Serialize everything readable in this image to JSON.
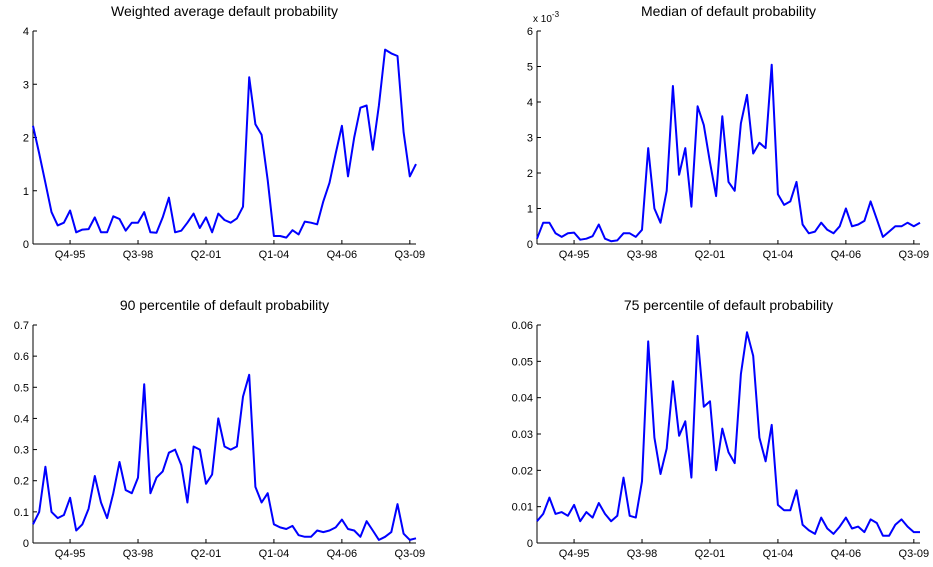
{
  "chart_data": [
    {
      "type": "line",
      "title": "Weighted average default probability",
      "xlabel": "",
      "ylabel": "",
      "ylim": [
        0,
        4
      ],
      "yticks": [
        "0",
        "1",
        "2",
        "3",
        "4"
      ],
      "y_exponent_label": "",
      "xticks": [
        {
          "label": "Q4-95",
          "index": 6
        },
        {
          "label": "Q3-98",
          "index": 17
        },
        {
          "label": "Q2-01",
          "index": 28
        },
        {
          "label": "Q1-04",
          "index": 39
        },
        {
          "label": "Q4-06",
          "index": 50
        },
        {
          "label": "Q3-09",
          "index": 61
        }
      ],
      "grid": false,
      "series": [
        {
          "color": "#0000ff",
          "values": [
            2.22,
            1.7,
            1.15,
            0.6,
            0.35,
            0.4,
            0.63,
            0.22,
            0.27,
            0.28,
            0.5,
            0.22,
            0.22,
            0.52,
            0.47,
            0.25,
            0.4,
            0.4,
            0.6,
            0.22,
            0.21,
            0.5,
            0.87,
            0.22,
            0.25,
            0.4,
            0.57,
            0.3,
            0.5,
            0.22,
            0.57,
            0.45,
            0.4,
            0.48,
            0.7,
            3.13,
            2.25,
            2.05,
            1.2,
            0.15,
            0.15,
            0.12,
            0.26,
            0.18,
            0.42,
            0.4,
            0.37,
            0.8,
            1.15,
            1.7,
            2.22,
            1.27,
            2.0,
            2.56,
            2.6,
            1.77,
            2.6,
            3.65,
            3.58,
            3.53,
            2.1,
            1.27,
            1.5
          ]
        }
      ]
    },
    {
      "type": "line",
      "title": "Median of default probability",
      "xlabel": "",
      "ylabel": "",
      "ylim": [
        0,
        6
      ],
      "yticks": [
        "0",
        "1",
        "2",
        "3",
        "4",
        "5",
        "6"
      ],
      "y_exponent_label": "x 10-3",
      "y_exponent_base": "x 10",
      "y_exponent_power": "-3",
      "xticks": [
        {
          "label": "Q4-95",
          "index": 6
        },
        {
          "label": "Q3-98",
          "index": 17
        },
        {
          "label": "Q2-01",
          "index": 28
        },
        {
          "label": "Q1-04",
          "index": 39
        },
        {
          "label": "Q4-06",
          "index": 50
        },
        {
          "label": "Q3-09",
          "index": 61
        }
      ],
      "grid": false,
      "series": [
        {
          "color": "#0000ff",
          "values": [
            0.15,
            0.6,
            0.6,
            0.3,
            0.2,
            0.3,
            0.32,
            0.12,
            0.15,
            0.22,
            0.55,
            0.15,
            0.08,
            0.1,
            0.3,
            0.3,
            0.2,
            0.4,
            2.7,
            1.0,
            0.6,
            1.5,
            4.45,
            1.95,
            2.7,
            1.05,
            3.88,
            3.35,
            2.3,
            1.35,
            3.6,
            1.75,
            1.5,
            3.4,
            4.2,
            2.55,
            2.85,
            2.7,
            5.05,
            1.4,
            1.1,
            1.2,
            1.75,
            0.55,
            0.3,
            0.35,
            0.6,
            0.4,
            0.3,
            0.5,
            1.0,
            0.5,
            0.55,
            0.65,
            1.2,
            0.7,
            0.2,
            0.35,
            0.5,
            0.5,
            0.6,
            0.5,
            0.6
          ]
        }
      ]
    },
    {
      "type": "line",
      "title": "90 percentile of default probability",
      "xlabel": "",
      "ylabel": "",
      "ylim": [
        0,
        0.7
      ],
      "yticks": [
        "0",
        "0.1",
        "0.2",
        "0.3",
        "0.4",
        "0.5",
        "0.6",
        "0.7"
      ],
      "y_exponent_label": "",
      "xticks": [
        {
          "label": "Q4-95",
          "index": 6
        },
        {
          "label": "Q3-98",
          "index": 17
        },
        {
          "label": "Q2-01",
          "index": 28
        },
        {
          "label": "Q1-04",
          "index": 39
        },
        {
          "label": "Q4-06",
          "index": 50
        },
        {
          "label": "Q3-09",
          "index": 61
        }
      ],
      "grid": false,
      "series": [
        {
          "color": "#0000ff",
          "values": [
            0.06,
            0.1,
            0.245,
            0.1,
            0.08,
            0.09,
            0.145,
            0.04,
            0.06,
            0.11,
            0.215,
            0.13,
            0.08,
            0.16,
            0.26,
            0.17,
            0.16,
            0.21,
            0.51,
            0.16,
            0.21,
            0.23,
            0.29,
            0.3,
            0.25,
            0.13,
            0.31,
            0.3,
            0.19,
            0.22,
            0.4,
            0.31,
            0.3,
            0.31,
            0.47,
            0.54,
            0.18,
            0.13,
            0.16,
            0.06,
            0.05,
            0.045,
            0.055,
            0.025,
            0.02,
            0.02,
            0.04,
            0.035,
            0.04,
            0.05,
            0.075,
            0.045,
            0.04,
            0.02,
            0.07,
            0.04,
            0.01,
            0.02,
            0.035,
            0.125,
            0.03,
            0.01,
            0.015
          ]
        }
      ]
    },
    {
      "type": "line",
      "title": "75 percentile of default probability",
      "xlabel": "",
      "ylabel": "",
      "ylim": [
        0,
        0.06
      ],
      "yticks": [
        "0",
        "0.01",
        "0.02",
        "0.03",
        "0.04",
        "0.05",
        "0.06"
      ],
      "y_exponent_label": "",
      "xticks": [
        {
          "label": "Q4-95",
          "index": 6
        },
        {
          "label": "Q3-98",
          "index": 17
        },
        {
          "label": "Q2-01",
          "index": 28
        },
        {
          "label": "Q1-04",
          "index": 39
        },
        {
          "label": "Q4-06",
          "index": 50
        },
        {
          "label": "Q3-09",
          "index": 61
        }
      ],
      "grid": false,
      "series": [
        {
          "color": "#0000ff",
          "values": [
            0.006,
            0.008,
            0.0125,
            0.008,
            0.0085,
            0.0075,
            0.0105,
            0.006,
            0.0085,
            0.007,
            0.011,
            0.008,
            0.006,
            0.0075,
            0.018,
            0.0075,
            0.007,
            0.017,
            0.0555,
            0.029,
            0.019,
            0.026,
            0.0445,
            0.0295,
            0.0335,
            0.018,
            0.057,
            0.0375,
            0.039,
            0.02,
            0.0315,
            0.025,
            0.022,
            0.0465,
            0.058,
            0.0515,
            0.029,
            0.0225,
            0.0325,
            0.0105,
            0.009,
            0.009,
            0.0145,
            0.005,
            0.0035,
            0.0025,
            0.007,
            0.004,
            0.0025,
            0.0045,
            0.007,
            0.004,
            0.0045,
            0.003,
            0.0065,
            0.0055,
            0.002,
            0.002,
            0.005,
            0.0065,
            0.0045,
            0.003,
            0.003
          ]
        }
      ]
    }
  ]
}
